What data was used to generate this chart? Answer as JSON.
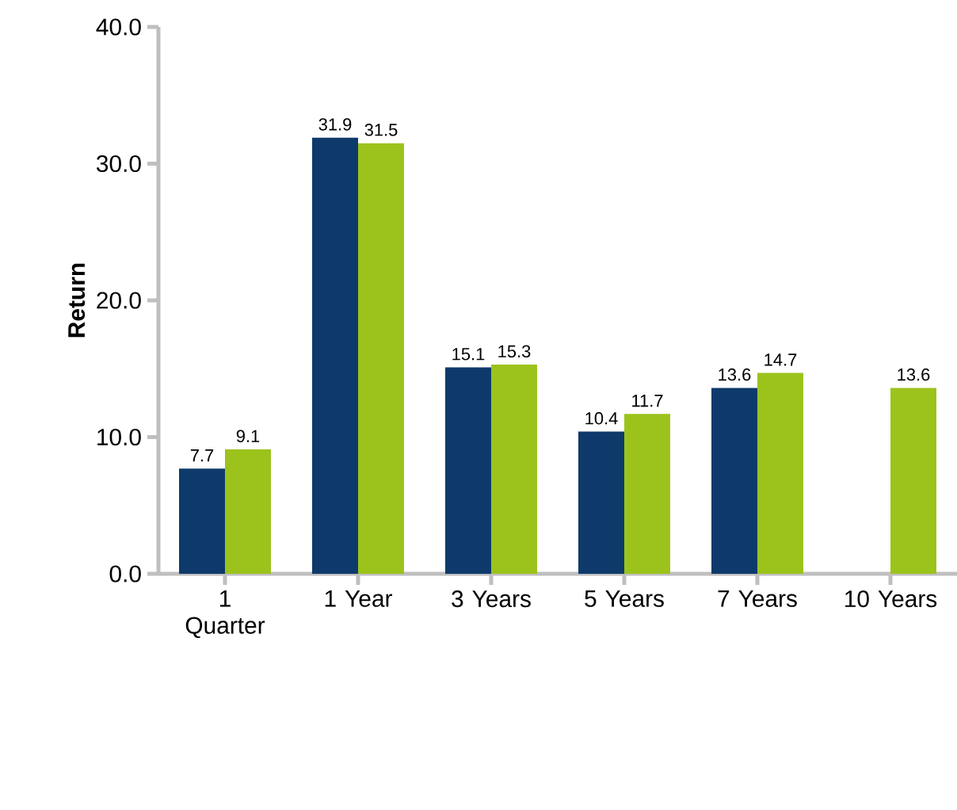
{
  "chart_data": {
    "type": "bar",
    "ylabel": "Return",
    "categories": [
      "1 Quarter",
      "1 Year",
      "3 Years",
      "5 Years",
      "7 Years",
      "10 Years"
    ],
    "series": [
      {
        "color": "#0e3a6b",
        "values": [
          7.7,
          31.9,
          15.1,
          10.4,
          13.6,
          null
        ],
        "value_labels": [
          "7.7",
          "31.9",
          "15.1",
          "10.4",
          "13.6",
          null
        ]
      },
      {
        "color": "#9cc31c",
        "values": [
          9.1,
          31.5,
          15.3,
          11.7,
          14.7,
          13.6
        ],
        "value_labels": [
          "9.1",
          "31.5",
          "15.3",
          "11.7",
          "14.7",
          "13.6"
        ]
      }
    ],
    "ylim": [
      0,
      40
    ],
    "yticks": [
      {
        "value": 0,
        "label": "0.0"
      },
      {
        "value": 10,
        "label": "10.0"
      },
      {
        "value": 20,
        "label": "20.0"
      },
      {
        "value": 30,
        "label": "30.0"
      },
      {
        "value": 40,
        "label": "40.0"
      }
    ],
    "grid": false
  }
}
